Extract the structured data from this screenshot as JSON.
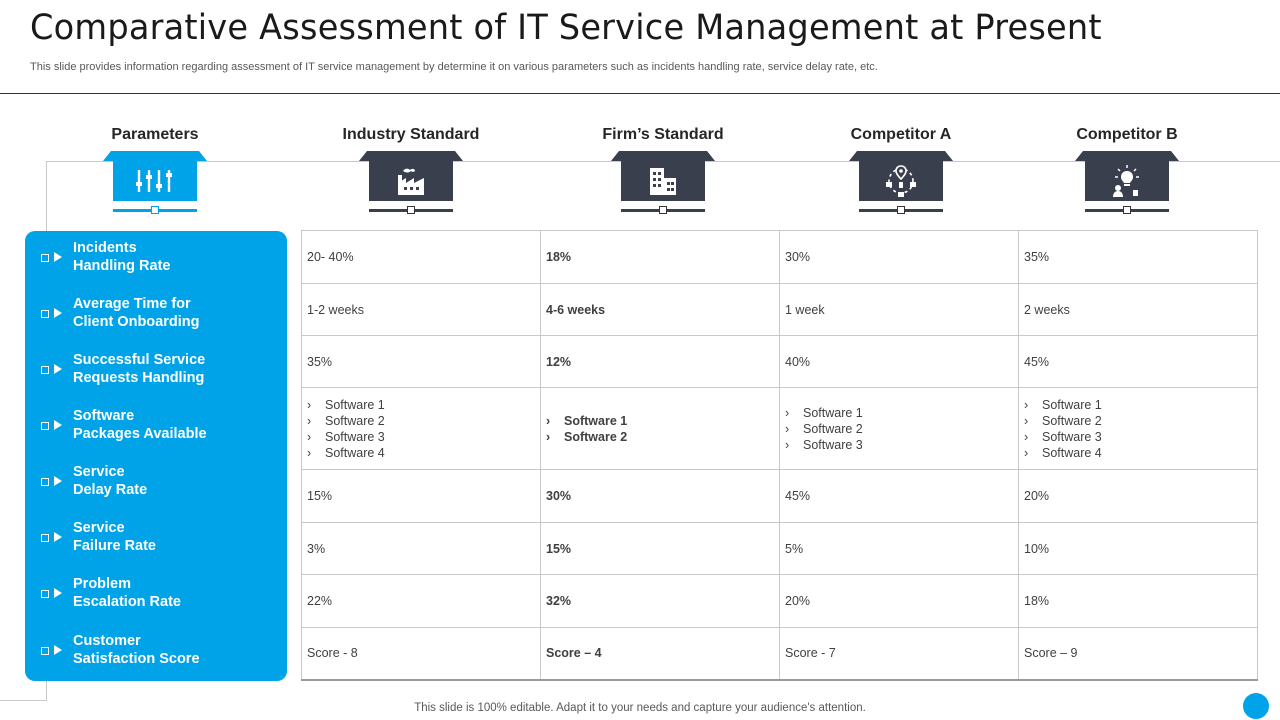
{
  "header": {
    "title": "Comparative Assessment of IT Service Management at Present",
    "subtitle": "This slide provides information regarding assessment of IT  service management by determine it on various parameters such as incidents handling rate, service delay rate, etc."
  },
  "columns": [
    {
      "label": "Parameters",
      "icon": "sliders-icon"
    },
    {
      "label": "Industry Standard",
      "icon": "factory-icon"
    },
    {
      "label": "Firm’s Standard",
      "icon": "building-icon"
    },
    {
      "label": "Competitor A",
      "icon": "network-location-icon"
    },
    {
      "label": "Competitor B",
      "icon": "idea-person-icon"
    }
  ],
  "parameters": [
    {
      "line1": "Incidents",
      "line2": "Handling Rate"
    },
    {
      "line1": "Average Time for",
      "line2": "Client Onboarding"
    },
    {
      "line1": "Successful Service",
      "line2": "Requests Handling"
    },
    {
      "line1": "Software",
      "line2": "Packages Available"
    },
    {
      "line1": "Service",
      "line2": "Delay Rate"
    },
    {
      "line1": "Service",
      "line2": "Failure Rate"
    },
    {
      "line1": "Problem",
      "line2": "Escalation Rate"
    },
    {
      "line1": "Customer",
      "line2": "Satisfaction Score"
    }
  ],
  "rows": [
    {
      "industry": "20- 40%",
      "firm": "18%",
      "compA": "30%",
      "compB": "35%"
    },
    {
      "industry": "1-2 weeks",
      "firm": "4-6  weeks",
      "compA": "1 week",
      "compB": "2 weeks"
    },
    {
      "industry": "35%",
      "firm": "12%",
      "compA": "40%",
      "compB": "45%"
    },
    {
      "industry_list": [
        "Software  1",
        "Software  2",
        "Software  3",
        "Software  4"
      ],
      "firm_list": [
        "Software 1",
        "Software 2"
      ],
      "compA_list": [
        "Software  1",
        "Software  2",
        "Software  3"
      ],
      "compB_list": [
        "Software  1",
        "Software  2",
        "Software  3",
        "Software  4"
      ]
    },
    {
      "industry": "15%",
      "firm": "30%",
      "compA": "45%",
      "compB": "20%"
    },
    {
      "industry": "3%",
      "firm": "15%",
      "compA": "5%",
      "compB": "10%"
    },
    {
      "industry": "22%",
      "firm": "32%",
      "compA": "20%",
      "compB": "18%"
    },
    {
      "industry": "Score - 8",
      "firm": "Score – 4",
      "compA": "Score - 7",
      "compB": "Score – 9"
    }
  ],
  "footer": {
    "text": "This slide is 100% editable. Adapt it to your needs and capture your audience's attention."
  },
  "colors": {
    "accent": "#00a3e8",
    "dark_box": "#3a3f4d"
  }
}
